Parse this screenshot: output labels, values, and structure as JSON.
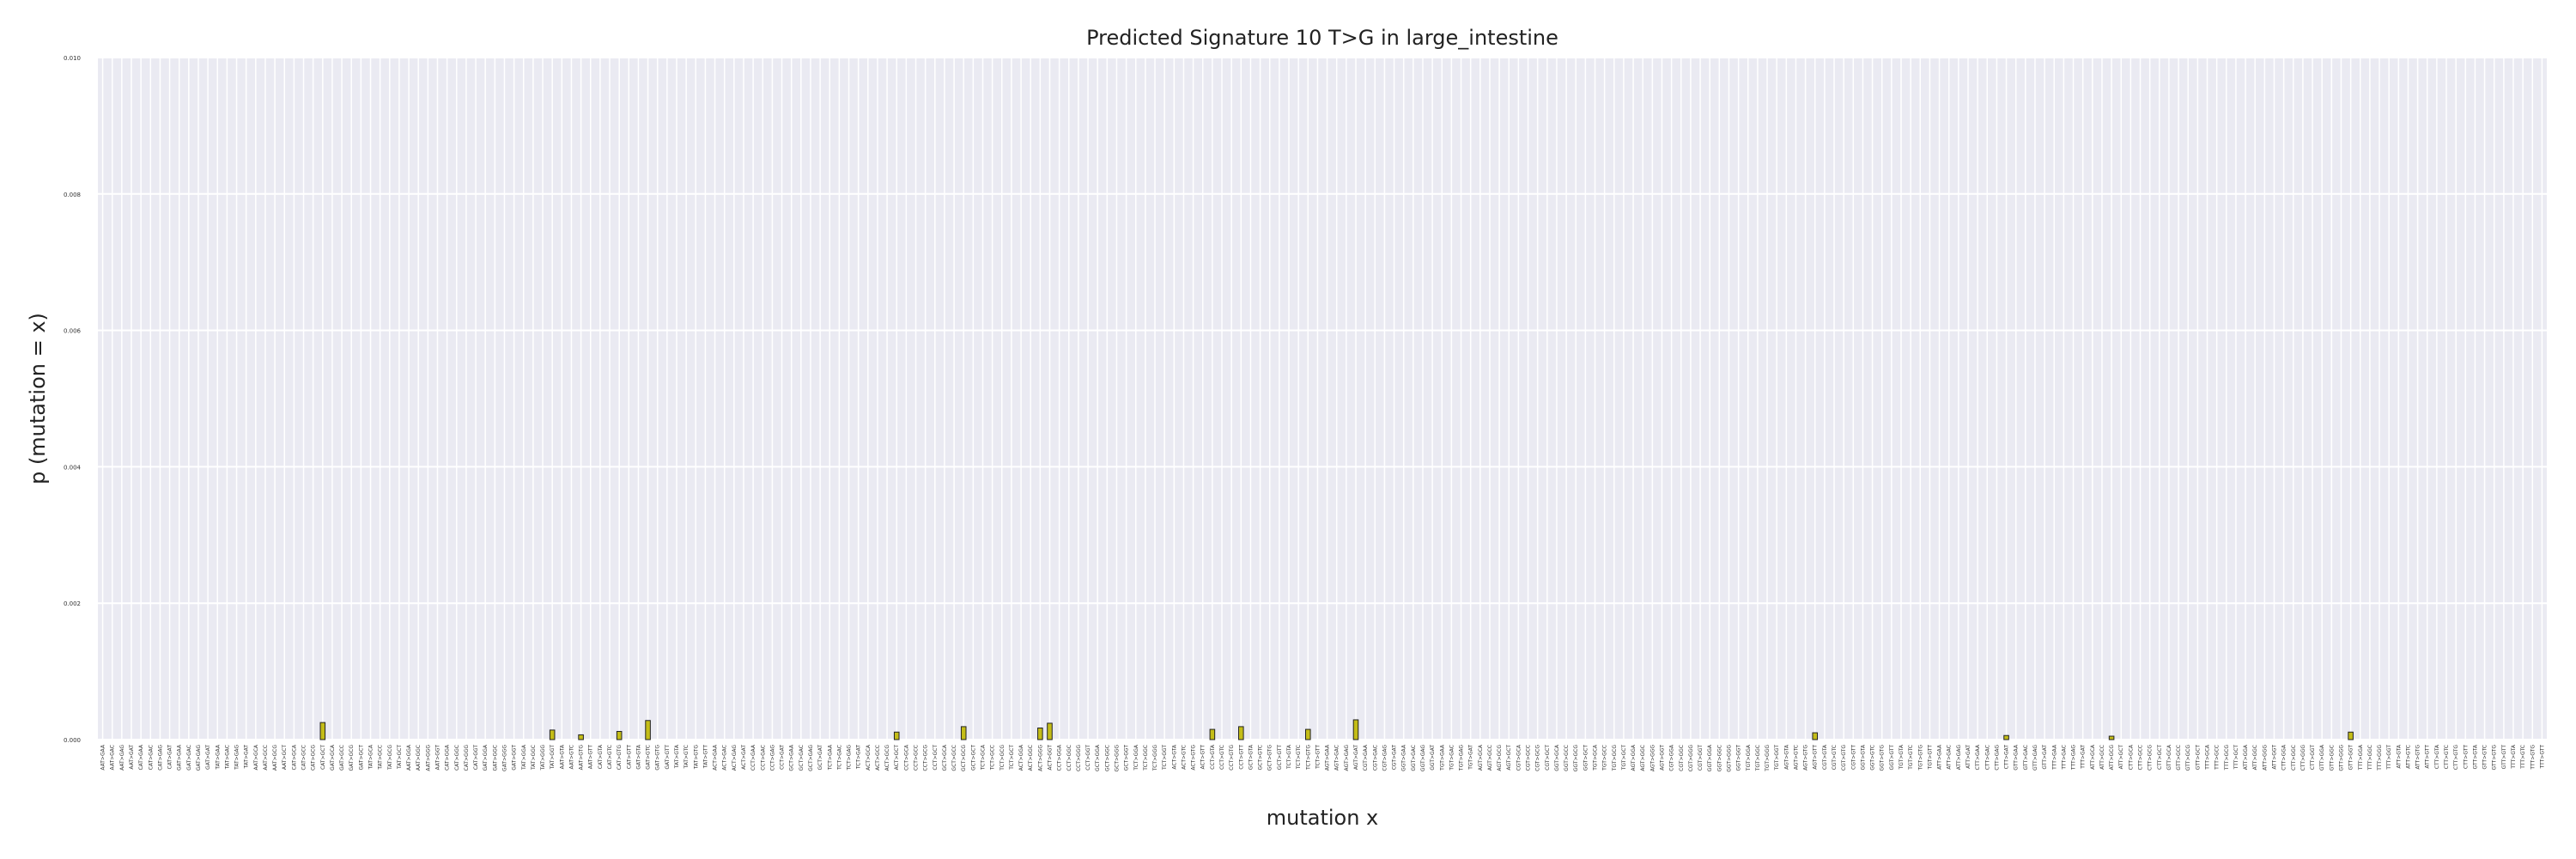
{
  "colors": {
    "plot_bg": "#eaeaf2",
    "grid": "#ffffff",
    "bar_fill": "#c4bd17",
    "bar_stroke": "#222222"
  },
  "chart_data": {
    "type": "bar",
    "title": "Predicted Signature 10 T>G in large_intestine",
    "xlabel": "mutation x",
    "ylabel": "p (mutation = x)",
    "ylim": [
      0,
      0.01
    ],
    "yticks": [
      0.0,
      0.002,
      0.004,
      0.006,
      0.008,
      0.01
    ],
    "ytick_labels": [
      "0.000",
      "0.002",
      "0.004",
      "0.006",
      "0.008",
      "0.010"
    ],
    "grid": true,
    "categories": [
      "AAT>GAA",
      "AAT>GAC",
      "AAT>GAG",
      "AAT>GAT",
      "CAT>GAA",
      "CAT>GAC",
      "CAT>GAG",
      "CAT>GAT",
      "GAT>GAA",
      "GAT>GAC",
      "GAT>GAG",
      "GAT>GAT",
      "TAT>GAA",
      "TAT>GAC",
      "TAT>GAG",
      "TAT>GAT",
      "AAT>GCA",
      "AAT>GCC",
      "AAT>GCG",
      "AAT>GCT",
      "CAT>GCA",
      "CAT>GCC",
      "CAT>GCG",
      "CAT>GCT",
      "GAT>GCA",
      "GAT>GCC",
      "GAT>GCG",
      "GAT>GCT",
      "TAT>GCA",
      "TAT>GCC",
      "TAT>GCG",
      "TAT>GCT",
      "AAT>GGA",
      "AAT>GGC",
      "AAT>GGG",
      "AAT>GGT",
      "CAT>GGA",
      "CAT>GGC",
      "CAT>GGG",
      "CAT>GGT",
      "GAT>GGA",
      "GAT>GGC",
      "GAT>GGG",
      "GAT>GGT",
      "TAT>GGA",
      "TAT>GGC",
      "TAT>GGG",
      "TAT>GGT",
      "AAT>GTA",
      "AAT>GTC",
      "AAT>GTG",
      "AAT>GTT",
      "CAT>GTA",
      "CAT>GTC",
      "CAT>GTG",
      "CAT>GTT",
      "GAT>GTA",
      "GAT>GTC",
      "GAT>GTG",
      "GAT>GTT",
      "TAT>GTA",
      "TAT>GTC",
      "TAT>GTG",
      "TAT>GTT",
      "ACT>GAA",
      "ACT>GAC",
      "ACT>GAG",
      "ACT>GAT",
      "CCT>GAA",
      "CCT>GAC",
      "CCT>GAG",
      "CCT>GAT",
      "GCT>GAA",
      "GCT>GAC",
      "GCT>GAG",
      "GCT>GAT",
      "TCT>GAA",
      "TCT>GAC",
      "TCT>GAG",
      "TCT>GAT",
      "ACT>GCA",
      "ACT>GCC",
      "ACT>GCG",
      "ACT>GCT",
      "CCT>GCA",
      "CCT>GCC",
      "CCT>GCG",
      "CCT>GCT",
      "GCT>GCA",
      "GCT>GCC",
      "GCT>GCG",
      "GCT>GCT",
      "TCT>GCA",
      "TCT>GCC",
      "TCT>GCG",
      "TCT>GCT",
      "ACT>GGA",
      "ACT>GGC",
      "ACT>GGG",
      "ACT>GGT",
      "CCT>GGA",
      "CCT>GGC",
      "CCT>GGG",
      "CCT>GGT",
      "GCT>GGA",
      "GCT>GGC",
      "GCT>GGG",
      "GCT>GGT",
      "TCT>GGA",
      "TCT>GGC",
      "TCT>GGG",
      "TCT>GGT",
      "ACT>GTA",
      "ACT>GTC",
      "ACT>GTG",
      "ACT>GTT",
      "CCT>GTA",
      "CCT>GTC",
      "CCT>GTG",
      "CCT>GTT",
      "GCT>GTA",
      "GCT>GTC",
      "GCT>GTG",
      "GCT>GTT",
      "TCT>GTA",
      "TCT>GTC",
      "TCT>GTG",
      "TCT>GTT",
      "AGT>GAA",
      "AGT>GAC",
      "AGT>GAG",
      "AGT>GAT",
      "CGT>GAA",
      "CGT>GAC",
      "CGT>GAG",
      "CGT>GAT",
      "GGT>GAA",
      "GGT>GAC",
      "GGT>GAG",
      "GGT>GAT",
      "TGT>GAA",
      "TGT>GAC",
      "TGT>GAG",
      "TGT>GAT",
      "AGT>GCA",
      "AGT>GCC",
      "AGT>GCG",
      "AGT>GCT",
      "CGT>GCA",
      "CGT>GCC",
      "CGT>GCG",
      "CGT>GCT",
      "GGT>GCA",
      "GGT>GCC",
      "GGT>GCG",
      "GGT>GCT",
      "TGT>GCA",
      "TGT>GCC",
      "TGT>GCG",
      "TGT>GCT",
      "AGT>GGA",
      "AGT>GGC",
      "AGT>GGG",
      "AGT>GGT",
      "CGT>GGA",
      "CGT>GGC",
      "CGT>GGG",
      "CGT>GGT",
      "GGT>GGA",
      "GGT>GGC",
      "GGT>GGG",
      "GGT>GGT",
      "TGT>GGA",
      "TGT>GGC",
      "TGT>GGG",
      "TGT>GGT",
      "AGT>GTA",
      "AGT>GTC",
      "AGT>GTG",
      "AGT>GTT",
      "CGT>GTA",
      "CGT>GTC",
      "CGT>GTG",
      "CGT>GTT",
      "GGT>GTA",
      "GGT>GTC",
      "GGT>GTG",
      "GGT>GTT",
      "TGT>GTA",
      "TGT>GTC",
      "TGT>GTG",
      "TGT>GTT",
      "ATT>GAA",
      "ATT>GAC",
      "ATT>GAG",
      "ATT>GAT",
      "CTT>GAA",
      "CTT>GAC",
      "CTT>GAG",
      "CTT>GAT",
      "GTT>GAA",
      "GTT>GAC",
      "GTT>GAG",
      "GTT>GAT",
      "TTT>GAA",
      "TTT>GAC",
      "TTT>GAG",
      "TTT>GAT",
      "ATT>GCA",
      "ATT>GCC",
      "ATT>GCG",
      "ATT>GCT",
      "CTT>GCA",
      "CTT>GCC",
      "CTT>GCG",
      "CTT>GCT",
      "GTT>GCA",
      "GTT>GCC",
      "GTT>GCG",
      "GTT>GCT",
      "TTT>GCA",
      "TTT>GCC",
      "TTT>GCG",
      "TTT>GCT",
      "ATT>GGA",
      "ATT>GGC",
      "ATT>GGG",
      "ATT>GGT",
      "CTT>GGA",
      "CTT>GGC",
      "CTT>GGG",
      "CTT>GGT",
      "GTT>GGA",
      "GTT>GGC",
      "GTT>GGG",
      "GTT>GGT",
      "TTT>GGA",
      "TTT>GGC",
      "TTT>GGG",
      "TTT>GGT",
      "ATT>GTA",
      "ATT>GTC",
      "ATT>GTG",
      "ATT>GTT",
      "CTT>GTA",
      "CTT>GTC",
      "CTT>GTG",
      "CTT>GTT",
      "GTT>GTA",
      "GTT>GTC",
      "GTT>GTG",
      "GTT>GTT",
      "TTT>GTA",
      "TTT>GTC",
      "TTT>GTG",
      "TTT>GTT"
    ],
    "values": [
      0,
      0,
      0,
      0,
      0,
      0,
      0,
      0,
      0,
      0,
      0,
      0,
      0,
      0,
      0,
      0,
      0,
      0,
      0,
      0,
      0,
      0,
      0,
      0.00025,
      0,
      0,
      0,
      0,
      0,
      0,
      0,
      0,
      0,
      0,
      0,
      0,
      0,
      0,
      0,
      0,
      0,
      0,
      0,
      0,
      0,
      0,
      0,
      0.00014,
      0,
      0,
      7e-05,
      0,
      0,
      0,
      0.00012,
      0,
      0,
      0.00028,
      0,
      0,
      0,
      0,
      0,
      0,
      0,
      0,
      0,
      0,
      0,
      0,
      0,
      0,
      0,
      0,
      0,
      0,
      0,
      0,
      0,
      0,
      0,
      0,
      0,
      0.00011,
      0,
      0,
      0,
      0,
      0,
      0,
      0.00019,
      0,
      0,
      0,
      0,
      0,
      0,
      0,
      0.00017,
      0.00024,
      0,
      0,
      0,
      0,
      0,
      0,
      0,
      0,
      0,
      0,
      0,
      0,
      0,
      0,
      0,
      0,
      0.00015,
      0,
      0,
      0.00019,
      0,
      0,
      0,
      0,
      0,
      0,
      0.00015,
      0,
      0,
      0,
      0,
      0.00029,
      0,
      0,
      0,
      0,
      0,
      0,
      0,
      0,
      0,
      0,
      0,
      0,
      0,
      0,
      0,
      0,
      0,
      0,
      0,
      0,
      0,
      0,
      0,
      0,
      0,
      0,
      0,
      0,
      0,
      0,
      0,
      0,
      0,
      0,
      0,
      0,
      0,
      0,
      0,
      0,
      0,
      0,
      0,
      0,
      0,
      0,
      0,
      0.0001,
      0,
      0,
      0,
      0,
      0,
      0,
      0,
      0,
      0,
      0,
      0,
      0,
      0,
      0,
      0,
      0,
      0,
      0,
      0,
      0,
      0,
      0,
      0,
      0,
      0,
      0,
      0,
      0,
      0,
      0,
      5e-05,
      0,
      0,
      0,
      0,
      0,
      0,
      0,
      0,
      0,
      0,
      0,
      0,
      0,
      0,
      0,
      0,
      0,
      0,
      0,
      0,
      0,
      0,
      0,
      0,
      0.00011,
      0,
      0,
      0,
      0,
      0,
      0,
      0,
      0,
      0,
      0,
      0,
      0,
      0,
      0,
      0,
      0,
      0,
      0,
      0,
      0
    ],
    "values_overrides": {
      "CTT>GAT": 6e-05
    }
  }
}
